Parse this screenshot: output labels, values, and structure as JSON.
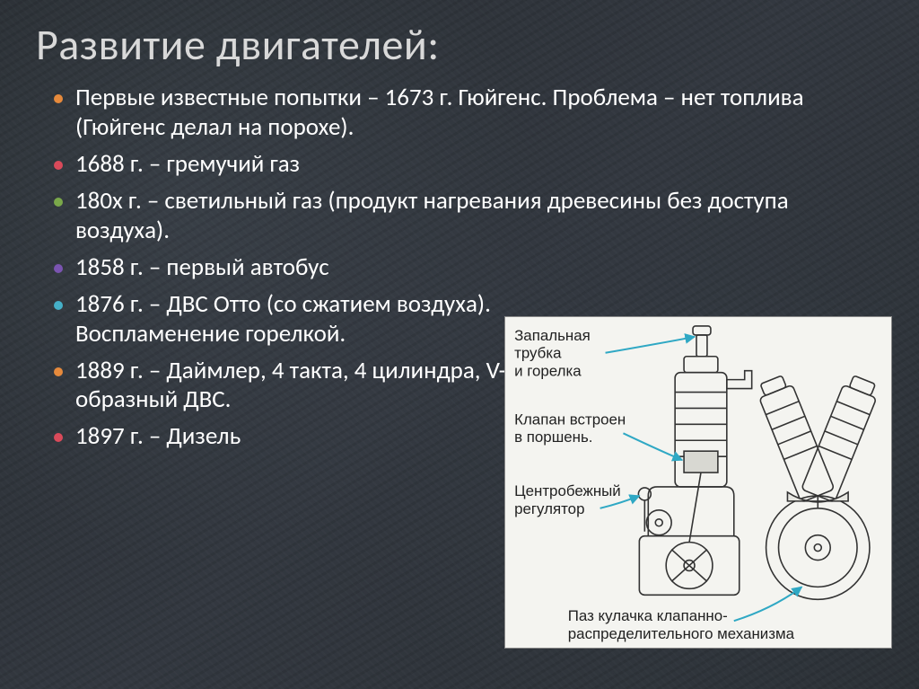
{
  "title": "Развитие двигателей:",
  "bullets": [
    {
      "text": "Первые известные попытки – 1673 г. Гюйгенс. Проблема – нет топлива (Гюйгенс делал на порохе).",
      "color": "#e68a3c",
      "narrow": false
    },
    {
      "text": "1688 г. – гремучий газ",
      "color": "#d94a5a",
      "narrow": false
    },
    {
      "text": "180х г. – светильный газ (продукт нагревания древесины без доступа воздуха).",
      "color": "#7aa84a",
      "narrow": false
    },
    {
      "text": "1858 г. – первый автобус",
      "color": "#7a54b0",
      "narrow": false
    },
    {
      "text": "1876 г. – ДВС Отто (со сжатием воздуха). Воспламенение горелкой.",
      "color": "#45b0c8",
      "narrow": true
    },
    {
      "text": "1889 г. – Даймлер, 4 такта, 4 цилиндра, V-образный ДВС.",
      "color": "#e68a3c",
      "narrow": true
    },
    {
      "text": "1897 г. – Дизель",
      "color": "#d94a5a",
      "narrow": true
    }
  ],
  "diagram": {
    "bg": "#f4f4f0",
    "stroke": "#333",
    "arrow": "#2fa8c4",
    "labels": {
      "l1a": "Запальная",
      "l1b": "трубка",
      "l1c": "и горелка",
      "l2a": "Клапан встроен",
      "l2b": "в поршень.",
      "l3a": "Центробежный",
      "l3b": "регулятор",
      "l4a": "Паз кулачка клапанно-",
      "l4b": "распределительного механизма"
    }
  }
}
